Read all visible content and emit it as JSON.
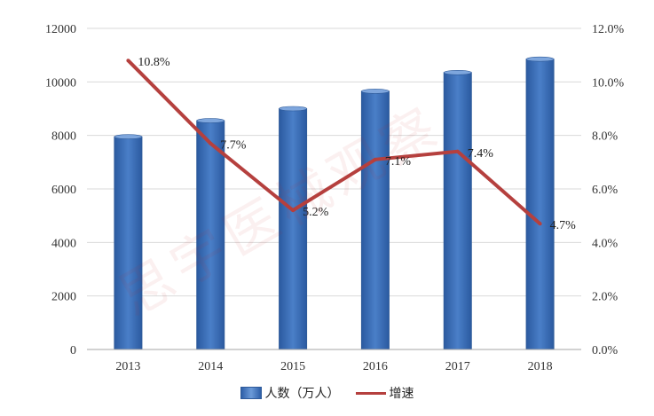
{
  "chart_data": {
    "type": "bar",
    "categories": [
      "2013",
      "2014",
      "2015",
      "2016",
      "2017",
      "2018"
    ],
    "series": [
      {
        "name": "人数（万人）",
        "type": "bar",
        "axis": "left",
        "values": [
          7950,
          8550,
          9000,
          9650,
          10350,
          10850
        ]
      },
      {
        "name": "增速",
        "type": "line",
        "axis": "right",
        "values": [
          10.8,
          7.7,
          5.2,
          7.1,
          7.4,
          4.7
        ],
        "labels": [
          "10.8%",
          "7.7%",
          "5.2%",
          "7.1%",
          "7.4%",
          "4.7%"
        ]
      }
    ],
    "ylim_left": [
      0,
      12000
    ],
    "yticks_left": [
      "0",
      "2000",
      "4000",
      "6000",
      "8000",
      "10000",
      "12000"
    ],
    "ylim_right": [
      0,
      12
    ],
    "yticks_right": [
      "0.0%",
      "2.0%",
      "4.0%",
      "6.0%",
      "8.0%",
      "10.0%",
      "12.0%"
    ],
    "grid": true,
    "legend_position": "bottom",
    "colors": {
      "bar": "#4a7fc8",
      "line": "#b5403e",
      "grid": "#d9d9d9"
    }
  },
  "watermark": "思宇医械观察"
}
